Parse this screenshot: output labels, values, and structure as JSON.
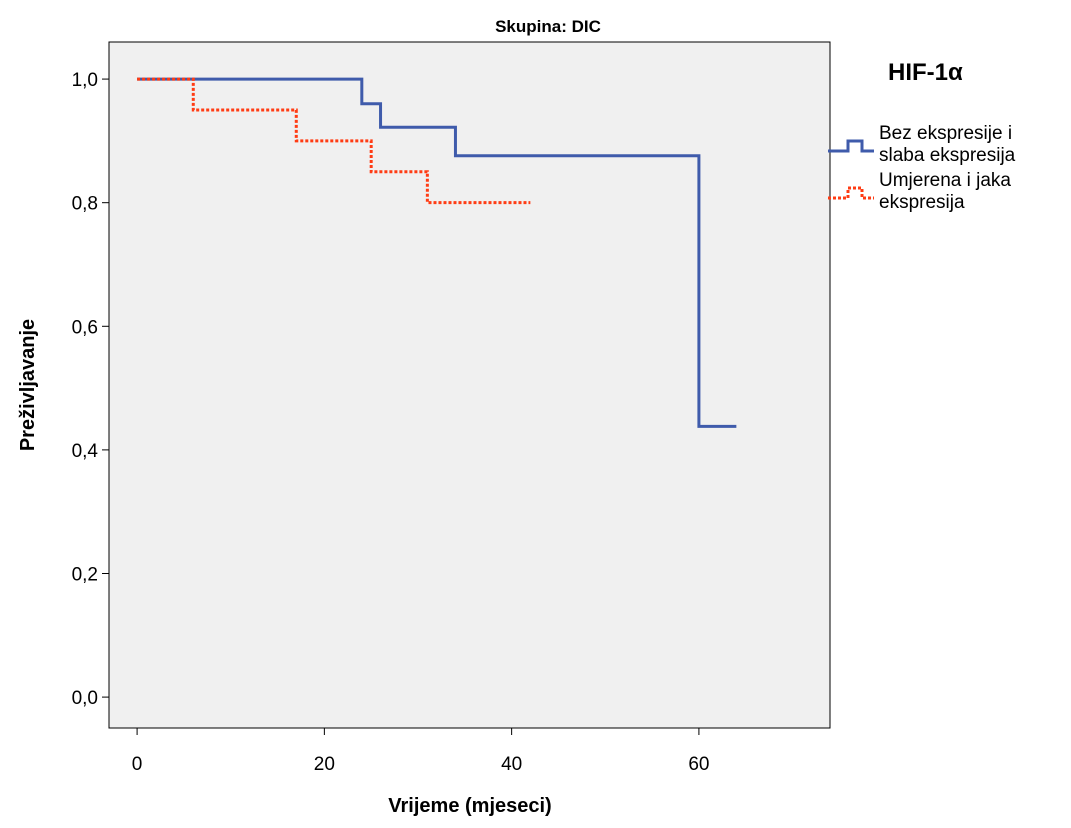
{
  "chart_data": {
    "type": "line",
    "title": "Skupina: DIC",
    "xlabel": "Vrijeme (mjeseci)",
    "ylabel": "Preživljavanje",
    "xlim": [
      -3,
      74
    ],
    "ylim": [
      -0.05,
      1.06
    ],
    "x_ticks": [
      0,
      20,
      40,
      60
    ],
    "x_tick_labels": [
      "0",
      "20",
      "40",
      "60"
    ],
    "y_ticks": [
      0.0,
      0.2,
      0.4,
      0.6,
      0.8,
      1.0
    ],
    "y_tick_labels": [
      "0,0",
      "0,2",
      "0,4",
      "0,6",
      "0,8",
      "1,0"
    ],
    "grid": false,
    "legend_title": "HIF-1α",
    "legend_position": "right",
    "series": [
      {
        "name": "Bez ekspresije i slaba ekspresija",
        "name_lines": [
          "Bez ekspresije i",
          "slaba ekspresija"
        ],
        "color": "#3f5bab",
        "style": "solid",
        "steps": [
          [
            0,
            1.0
          ],
          [
            24,
            0.96
          ],
          [
            26,
            0.922
          ],
          [
            34,
            0.876
          ],
          [
            60,
            0.438
          ],
          [
            64,
            0.438
          ]
        ]
      },
      {
        "name": "Umjerena i jaka ekspresija",
        "name_lines": [
          "Umjerena i jaka",
          "ekspresija"
        ],
        "color": "#ff3c14",
        "style": "dotted",
        "steps": [
          [
            0,
            1.0
          ],
          [
            6,
            0.95
          ],
          [
            17,
            0.9
          ],
          [
            25,
            0.85
          ],
          [
            31,
            0.8
          ],
          [
            42,
            0.8
          ]
        ]
      }
    ]
  },
  "colors": {
    "plot_background": "#f0f0f0",
    "page_background": "#ffffff"
  }
}
